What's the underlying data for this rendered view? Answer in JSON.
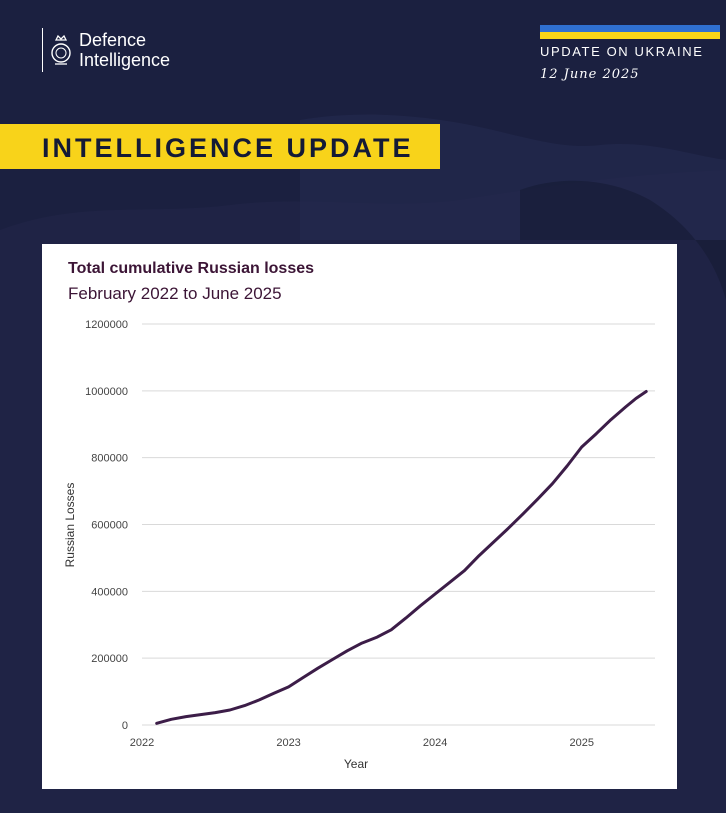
{
  "header": {
    "org_line1": "Defence",
    "org_line2": "Intelligence",
    "update_label": "UPDATE ON UKRAINE",
    "date": "12 June 2025",
    "banner": "INTELLIGENCE UPDATE"
  },
  "colors": {
    "background": "#1b2040",
    "banner": "#f8d31a",
    "flag_blue": "#2f6fd0",
    "flag_yellow": "#f7d417",
    "line": "#3c1d48",
    "title": "#3c1536"
  },
  "chart_data": {
    "type": "line",
    "title": "Total cumulative Russian losses",
    "subtitle": "February 2022 to June 2025",
    "xlabel": "Year",
    "ylabel": "Russian Losses",
    "xlim": [
      2022.0,
      2025.5
    ],
    "ylim": [
      0,
      1200000
    ],
    "x_ticks": [
      "2022",
      "2023",
      "2024",
      "2025"
    ],
    "y_ticks": [
      "0",
      "200000",
      "400000",
      "600000",
      "800000",
      "1000000",
      "1200000"
    ],
    "grid": true,
    "series": [
      {
        "x": [
          2022.1,
          2022.2,
          2022.3,
          2022.4,
          2022.5,
          2022.6,
          2022.7,
          2022.8,
          2022.9,
          2023.0,
          2023.1,
          2023.2,
          2023.3,
          2023.4,
          2023.5,
          2023.6,
          2023.7,
          2023.8,
          2023.9,
          2024.0,
          2024.1,
          2024.2,
          2024.3,
          2024.4,
          2024.5,
          2024.6,
          2024.7,
          2024.8,
          2024.9,
          2025.0,
          2025.1,
          2025.2,
          2025.3,
          2025.37,
          2025.44
        ],
        "values": [
          5000,
          17000,
          25000,
          31000,
          37000,
          45000,
          58000,
          75000,
          95000,
          114000,
          142000,
          170000,
          196000,
          222000,
          245000,
          262000,
          285000,
          320000,
          357000,
          392000,
          427000,
          462000,
          507000,
          548000,
          589000,
          632000,
          676000,
          722000,
          775000,
          832000,
          872000,
          914000,
          952000,
          977000,
          998000
        ]
      }
    ]
  }
}
